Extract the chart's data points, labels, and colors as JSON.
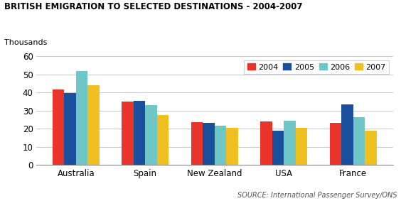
{
  "title": "BRITISH EMIGRATION TO SELECTED DESTINATIONS - 2004-2007",
  "ylabel": "Thousands",
  "source": "SOURCE: International Passenger Survey/ONS",
  "categories": [
    "Australia",
    "Spain",
    "New Zealand",
    "USA",
    "France"
  ],
  "years": [
    "2004",
    "2005",
    "2006",
    "2007"
  ],
  "values": {
    "2004": [
      41.5,
      35.0,
      23.5,
      24.0,
      23.0
    ],
    "2005": [
      39.5,
      35.5,
      23.0,
      19.0,
      33.5
    ],
    "2006": [
      52.0,
      33.0,
      21.5,
      24.5,
      26.5
    ],
    "2007": [
      44.0,
      27.5,
      20.5,
      20.5,
      19.0
    ]
  },
  "colors": {
    "2004": "#e8342a",
    "2005": "#1a4f9c",
    "2006": "#6ec6c6",
    "2007": "#f0c020"
  },
  "ylim": [
    0,
    60
  ],
  "yticks": [
    0,
    10,
    20,
    30,
    40,
    50,
    60
  ],
  "bar_width": 0.17,
  "grid_color": "#cccccc"
}
